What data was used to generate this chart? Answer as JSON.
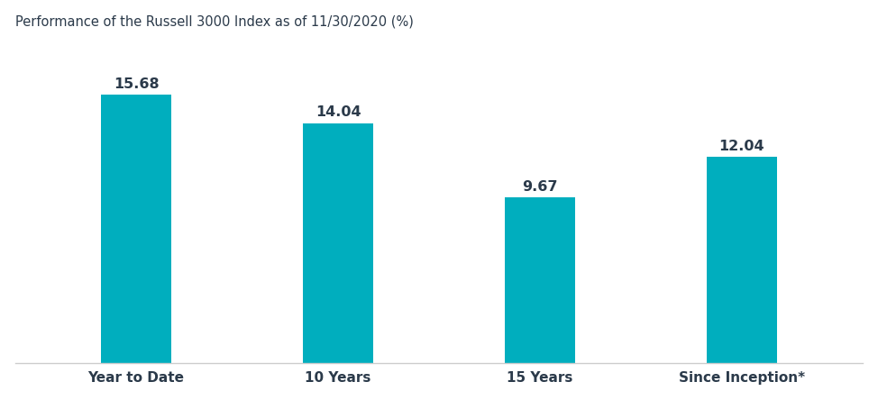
{
  "categories": [
    "Year to Date",
    "10 Years",
    "15 Years",
    "Since Inception*"
  ],
  "values": [
    15.68,
    14.04,
    9.67,
    12.04
  ],
  "bar_color": "#00AEBE",
  "title": "Performance of the Russell 3000 Index as of 11/30/2020 (%)",
  "title_fontsize": 10.5,
  "title_color": "#2b3a4a",
  "value_label_fontsize": 11.5,
  "value_label_color": "#2b3a4a",
  "xlabel_fontsize": 11,
  "xlabel_color": "#2b3a4a",
  "ylim": [
    0,
    19
  ],
  "background_color": "#ffffff",
  "bar_width": 0.35
}
